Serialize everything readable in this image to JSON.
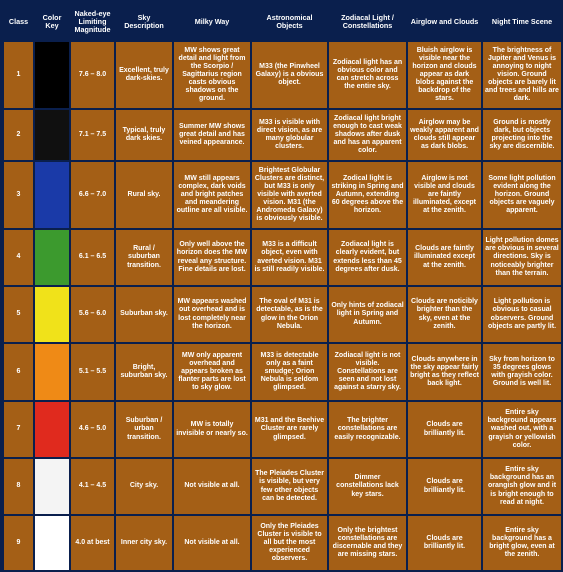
{
  "headers": [
    "Class",
    "Color Key",
    "Naked-eye Limiting Magnitude",
    "Sky Description",
    "Milky Way",
    "Astronomical Objects",
    "Zodiacal Light / Constellations",
    "Airglow and Clouds",
    "Night Time Scene"
  ],
  "rows": [
    {
      "cls": "1",
      "color": "#000000",
      "mag": "7.6 – 8.0",
      "sky": "Excellent, truly dark-skies.",
      "mw": "MW shows great detail and light from the Scorpio / Sagittarius region casts obvious shadows on the ground.",
      "obj": "M33 (the Pinwheel Galaxy) is a obvious object.",
      "zod": "Zodiacal light has an obvious color and can stretch across the entire sky.",
      "air": "Bluish airglow is visible near the horizon and clouds appear as dark blobs against the backdrop of the stars.",
      "scene": "The brightness of Jupiter and Venus is annoying to night vision. Ground objects are barely lit and trees and hills are dark."
    },
    {
      "cls": "2",
      "color": "#101010",
      "mag": "7.1 – 7.5",
      "sky": "Typical, truly dark skies.",
      "mw": "Summer MW shows great detail and has veined appearance.",
      "obj": "M33 is visible with direct vision, as are many globular clusters.",
      "zod": "Zodiacal light bright enough to cast weak shadows after dusk and has an apparent color.",
      "air": "Airglow may be weakly apparent and clouds still appear as dark blobs.",
      "scene": "Ground is mostly dark, but objects projecting into the sky are discernible."
    },
    {
      "cls": "3",
      "color": "#1a3aa8",
      "mag": "6.6 – 7.0",
      "sky": "Rural sky.",
      "mw": "MW still appears complex, dark voids and bright patches and meandering outline are all visible.",
      "obj": "Brightest Globular Clusters are distinct, but M33 is only visible with averted vision. M31 (the Andromeda Galaxy) is obviously visible.",
      "zod": "Zodical light is striking in Spring and Autumn, extending 60 degrees above the horizon.",
      "air": "Airglow is not visible and clouds are faintly illuminated, except at the zenith.",
      "scene": "Some light pollution evident along the horizon. Ground objects are vaguely apparent."
    },
    {
      "cls": "4",
      "color": "#3c9a2e",
      "mag": "6.1 – 6.5",
      "sky": "Rural / suburban transition.",
      "mw": "Only well above the horizon does the MW reveal any structure. Fine details are lost.",
      "obj": "M33 is a difficult object, even with averted vision. M31 is still readily visible.",
      "zod": "Zodiacal light is clearly evident, but extends less than 45 degrees after dusk.",
      "air": "Clouds are faintly illuminated except at the zenith.",
      "scene": "Light pollution domes are obvious in several directions. Sky is noticeably brighter than the terrain."
    },
    {
      "cls": "5",
      "color": "#f0e21a",
      "mag": "5.6 – 6.0",
      "sky": "Suburban sky.",
      "mw": "MW appears washed out overhead and is lost completely near the horizon.",
      "obj": "The oval of M31 is detectable, as is the glow in the Orion Nebula.",
      "zod": "Only hints of zodiacal light in Spring and Autumn.",
      "air": "Clouds are noticibly brighter than the sky, even at the zenith.",
      "scene": "Light pollution is obvious to casual observers. Ground objects are partly lit."
    },
    {
      "cls": "6",
      "color": "#ef8a16",
      "mag": "5.1 – 5.5",
      "sky": "Bright, suburban sky.",
      "mw": "MW only apparent overhead and appears broken as flanter parts are lost to sky glow.",
      "obj": "M33 is detectable only as a faint smudge; Orion Nebula is seldom glimpsed.",
      "zod": "Zodiacal light is not visible. Constellations are seen and not lost against a starry sky.",
      "air": "Clouds anywhere in the sky appear fairly bright as they reflect back light.",
      "scene": "Sky from horizon to 35 degrees glows with grayish color. Ground is well lit."
    },
    {
      "cls": "7",
      "color": "#e02a1e",
      "mag": "4.6 – 5.0",
      "sky": "Suburban / urban transition.",
      "mw": "MW is totally invisible or nearly so.",
      "obj": "M31 and the Beehive Cluster are rarely glimpsed.",
      "zod": "The brighter constellations are easily recognizable.",
      "air": "Clouds are brilliantly lit.",
      "scene": "Entire sky background appears washed out, with a grayish or yellowish color."
    },
    {
      "cls": "8",
      "color": "#f4f4f4",
      "mag": "4.1 – 4.5",
      "sky": "City sky.",
      "mw": "Not visible at all.",
      "obj": "The Pleiades Cluster is visible, but very few other objects can be detected.",
      "zod": "Dimmer constellations lack key stars.",
      "air": "Clouds are brilliantly lit.",
      "scene": "Entire sky background has an orangish glow and it is bright enough to read at night."
    },
    {
      "cls": "9",
      "color": "#ffffff",
      "mag": "4.0 at best",
      "sky": "Inner city sky.",
      "mw": "Not visible at all.",
      "obj": "Only the Pleiades Cluster is visible to all but the most experienced observers.",
      "zod": "Only the brightest constellations are discernable and they are missing stars.",
      "air": "Clouds are brilliantly lit.",
      "scene": "Entire sky background has a bright glow, even at the zenith."
    }
  ]
}
